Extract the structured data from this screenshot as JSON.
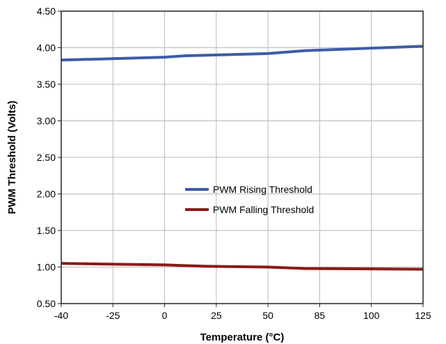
{
  "chart_data": {
    "type": "line",
    "title": "",
    "xlabel": "Temperature (°C)",
    "ylabel": "PWM Threshold (Volts)",
    "categories": [
      "-40",
      "-25",
      "0",
      "25",
      "50",
      "85",
      "100",
      "125"
    ],
    "x_tick_labels": [
      "-40",
      "-25",
      "0",
      "25",
      "50",
      "85",
      "100",
      "125"
    ],
    "y_tick_labels": [
      "0.50",
      "1.00",
      "1.50",
      "2.00",
      "2.50",
      "3.00",
      "3.50",
      "4.00",
      "4.50"
    ],
    "ylim": [
      0.5,
      4.5
    ],
    "grid": true,
    "legend_position": "center",
    "series": [
      {
        "name": "PWM Rising Threshold",
        "color": "#3c5ca8",
        "points": [
          {
            "x": -40,
            "y": 3.83
          },
          {
            "x": 0,
            "y": 3.87
          },
          {
            "x": 10,
            "y": 3.89
          },
          {
            "x": 50,
            "y": 3.92
          },
          {
            "x": 75,
            "y": 3.96
          },
          {
            "x": 125,
            "y": 4.02
          }
        ]
      },
      {
        "name": "PWM Falling Threshold",
        "color": "#8b1a1a",
        "points": [
          {
            "x": -40,
            "y": 1.05
          },
          {
            "x": 0,
            "y": 1.03
          },
          {
            "x": 20,
            "y": 1.01
          },
          {
            "x": 50,
            "y": 1.0
          },
          {
            "x": 75,
            "y": 0.98
          },
          {
            "x": 125,
            "y": 0.97
          }
        ]
      }
    ]
  }
}
